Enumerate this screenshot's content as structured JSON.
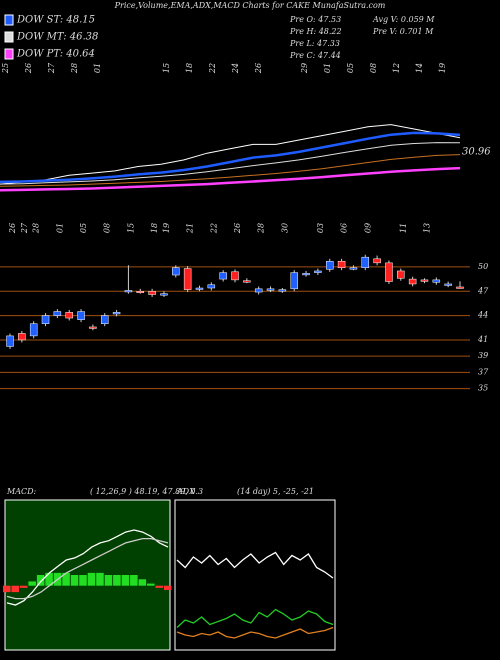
{
  "header": {
    "title": "Price,Volume,EMA,ADX,MACD Charts for CAKE MunafaSutra.com",
    "info": [
      "Pre  O: 47.53",
      "Pre  H: 48.22",
      "Pre  L: 47.33",
      "Pre  C: 47.44",
      "Avg  V: 0.059 M",
      "Pre  V: 0.701 M"
    ]
  },
  "chart_data": [
    {
      "type": "line",
      "annotation": "30.96",
      "categories": [
        "25",
        "26",
        "27",
        "28",
        "01",
        null,
        null,
        "15",
        "18",
        "22",
        "24",
        "26",
        null,
        "29",
        "01",
        "05",
        "08",
        "12",
        "14",
        "19",
        null
      ],
      "ylim": [
        33.4,
        60.6
      ],
      "series": [
        {
          "color": "#ffffff",
          "width": 1,
          "values": [
            37,
            37.5,
            38,
            39,
            39.5,
            40,
            41,
            41.5,
            42.5,
            44,
            45,
            46,
            46,
            47,
            48,
            49,
            50,
            50.5,
            49.5,
            48.5,
            47.5
          ]
        },
        {
          "name": "DOW ST: 48.15",
          "color": "#1e5cff",
          "width": 2.5,
          "values": [
            37.5,
            37.6,
            37.8,
            38,
            38.3,
            38.7,
            39.2,
            39.6,
            40.2,
            41,
            42,
            43,
            43.5,
            44.3,
            45.3,
            46.3,
            47.3,
            48.2,
            48.6,
            48.5,
            48.15
          ]
        },
        {
          "name": "DOW MT: 46.38",
          "color": "#dddddd",
          "width": 1,
          "values": [
            37,
            37.1,
            37.3,
            37.5,
            37.7,
            38,
            38.4,
            38.8,
            39.2,
            39.8,
            40.5,
            41.2,
            41.8,
            42.5,
            43.3,
            44.2,
            45,
            45.8,
            46.2,
            46.4,
            46.38
          ]
        },
        {
          "color": "#c87020",
          "width": 1,
          "values": [
            36.5,
            36.6,
            36.7,
            36.8,
            37,
            37.2,
            37.4,
            37.6,
            37.9,
            38.2,
            38.6,
            39,
            39.4,
            39.9,
            40.5,
            41.2,
            41.9,
            42.6,
            43.1,
            43.5,
            43.7
          ]
        },
        {
          "name": "DOW PT: 40.64",
          "color": "#ff40ff",
          "width": 2.5,
          "values": [
            35.6,
            35.7,
            35.8,
            35.9,
            36,
            36.2,
            36.4,
            36.6,
            36.8,
            37,
            37.3,
            37.6,
            37.9,
            38.2,
            38.6,
            39,
            39.4,
            39.8,
            40.1,
            40.4,
            40.64
          ]
        }
      ]
    },
    {
      "type": "candlestick",
      "categories": [
        "26",
        "27",
        "28",
        null,
        "01",
        null,
        "05",
        null,
        "08",
        null,
        "15",
        null,
        "18",
        "19",
        null,
        "21",
        null,
        "22",
        null,
        "26",
        null,
        "28",
        null,
        "30",
        null,
        null,
        "03",
        null,
        "06",
        null,
        "09",
        null,
        null,
        "11",
        null,
        "13",
        null,
        null,
        null
      ],
      "open": [
        40.2,
        41.8,
        41.5,
        43.0,
        44.0,
        44.4,
        43.5,
        42.6,
        43.0,
        44.2,
        47.0,
        47.0,
        47.0,
        46.6,
        49.0,
        49.8,
        47.3,
        47.4,
        48.5,
        49.4,
        48.3,
        46.9,
        47.2,
        47.1,
        47.3,
        49.1,
        49.3,
        49.7,
        50.7,
        49.9,
        49.9,
        51.0,
        50.5,
        49.5,
        48.5,
        48.4,
        48.1,
        47.8,
        47.53
      ],
      "high": [
        41.8,
        42.1,
        43.3,
        44.3,
        44.8,
        44.7,
        44.8,
        42.9,
        44.3,
        44.7,
        50.2,
        47.3,
        47.3,
        47.0,
        50.2,
        50.1,
        47.7,
        48.1,
        49.6,
        49.7,
        48.6,
        47.6,
        47.6,
        47.4,
        49.6,
        49.5,
        49.8,
        51.0,
        51.0,
        50.2,
        51.5,
        51.4,
        50.8,
        49.8,
        48.8,
        48.6,
        48.7,
        48.2,
        48.22
      ],
      "low": [
        39.9,
        40.7,
        41.2,
        42.7,
        43.7,
        43.4,
        43.2,
        42.2,
        42.7,
        43.9,
        46.7,
        46.7,
        46.3,
        46.3,
        48.7,
        46.9,
        47.0,
        47.1,
        48.2,
        48.1,
        48.0,
        46.6,
        46.9,
        46.8,
        47.0,
        48.8,
        49.0,
        49.4,
        49.6,
        49.6,
        49.6,
        50.2,
        47.9,
        48.3,
        47.6,
        48.0,
        47.8,
        47.5,
        47.33
      ],
      "close": [
        41.5,
        41.0,
        43.0,
        44.0,
        44.5,
        43.7,
        44.5,
        42.5,
        44.0,
        44.4,
        47.1,
        46.9,
        46.6,
        46.7,
        49.9,
        47.2,
        47.4,
        47.8,
        49.3,
        48.4,
        48.2,
        47.3,
        47.3,
        47.2,
        49.3,
        49.2,
        49.5,
        50.7,
        49.9,
        49.9,
        51.2,
        50.5,
        48.2,
        48.6,
        47.9,
        48.3,
        48.4,
        47.9,
        47.44
      ],
      "up_color": "#2060ff",
      "down_color": "#ff2020",
      "ylim": [
        33.6,
        52.7
      ],
      "yticks": [
        35,
        37,
        39,
        41,
        44,
        47,
        50
      ]
    },
    {
      "type": "macd",
      "title": "MACD:",
      "subtitle": "( 12,26,9 ) 48.19, 47.89, 0.3",
      "ylim": [
        -3,
        4
      ],
      "background": "#004000",
      "series": [
        {
          "color": "#ffffff",
          "values": [
            -0.8,
            -0.9,
            -0.7,
            -0.3,
            0.2,
            0.6,
            0.9,
            1.2,
            1.3,
            1.5,
            1.8,
            2.0,
            2.1,
            2.3,
            2.5,
            2.6,
            2.5,
            2.3,
            2.0,
            1.8
          ]
        },
        {
          "color": "#cccccc",
          "values": [
            -0.5,
            -0.6,
            -0.6,
            -0.5,
            -0.3,
            0,
            0.3,
            0.6,
            0.8,
            1.0,
            1.2,
            1.4,
            1.6,
            1.8,
            2.0,
            2.1,
            2.2,
            2.2,
            2.1,
            2.0
          ]
        }
      ],
      "histogram": [
        -0.3,
        -0.3,
        -0.1,
        0.2,
        0.5,
        0.6,
        0.6,
        0.6,
        0.5,
        0.5,
        0.6,
        0.6,
        0.5,
        0.5,
        0.5,
        0.5,
        0.3,
        0.1,
        -0.1,
        -0.2
      ],
      "up_color": "#22dd22",
      "down_color": "#ff3030"
    },
    {
      "type": "adx",
      "title": "ADX",
      "subtitle": "(14 day) 5, -25, -21",
      "ylim": [
        0,
        100
      ],
      "background": "#000000",
      "series": [
        {
          "color": "#ffffff",
          "values": [
            60,
            55,
            62,
            58,
            63,
            57,
            61,
            55,
            60,
            64,
            58,
            62,
            65,
            57,
            63,
            60,
            64,
            55,
            52,
            48
          ]
        },
        {
          "color": "#22cc22",
          "values": [
            15,
            20,
            18,
            22,
            17,
            19,
            21,
            24,
            20,
            18,
            25,
            22,
            27,
            24,
            20,
            22,
            26,
            24,
            19,
            17
          ]
        },
        {
          "color": "#e08020",
          "values": [
            12,
            10,
            9,
            11,
            10,
            12,
            9,
            8,
            10,
            12,
            11,
            9,
            8,
            10,
            12,
            14,
            11,
            12,
            13,
            15
          ]
        }
      ]
    }
  ]
}
